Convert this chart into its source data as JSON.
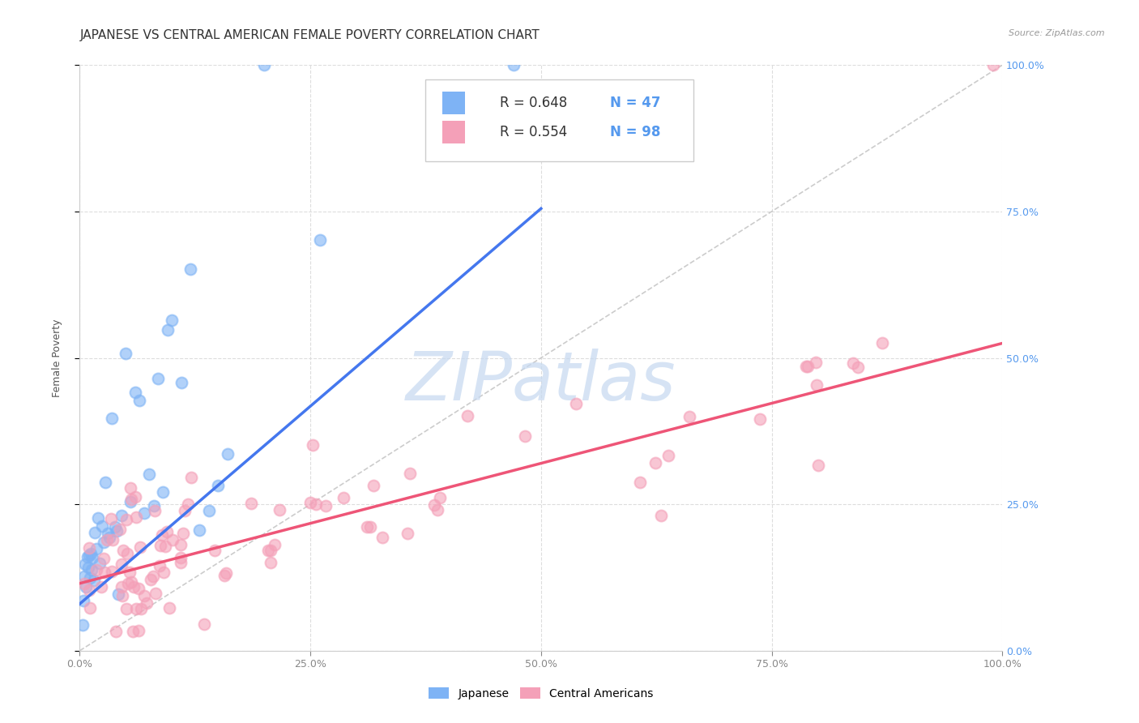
{
  "title": "JAPANESE VS CENTRAL AMERICAN FEMALE POVERTY CORRELATION CHART",
  "source": "Source: ZipAtlas.com",
  "ylabel": "Female Poverty",
  "xlim": [
    0,
    1.0
  ],
  "ylim": [
    0,
    1.0
  ],
  "xtick_vals": [
    0.0,
    0.25,
    0.5,
    0.75,
    1.0
  ],
  "ytick_vals": [
    0.0,
    0.25,
    0.5,
    0.75,
    1.0
  ],
  "xtick_labels": [
    "0.0%",
    "25.0%",
    "50.0%",
    "75.0%",
    "100.0%"
  ],
  "ytick_labels": [
    "0.0%",
    "25.0%",
    "50.0%",
    "75.0%",
    "100.0%"
  ],
  "japanese_color": "#7EB3F5",
  "central_american_color": "#F4A0B8",
  "diagonal_color": "#CCCCCC",
  "trend_japanese_color": "#4477EE",
  "trend_central_color": "#EE5577",
  "legend_R_japanese": "R = 0.648",
  "legend_N_japanese": "N = 47",
  "legend_R_central": "R = 0.554",
  "legend_N_central": "N = 98",
  "watermark_text": "ZIPatlas",
  "watermark_color": "#C5D8F0",
  "background_color": "#FFFFFF",
  "grid_color": "#DDDDDD",
  "tick_color_right": "#5599EE",
  "tick_color_x": "#888888",
  "title_fontsize": 11,
  "source_fontsize": 8,
  "axis_label_fontsize": 9,
  "tick_fontsize": 9,
  "jp_slope": 1.35,
  "jp_intercept": 0.08,
  "ca_slope": 0.41,
  "ca_intercept": 0.115,
  "jp_line_xmax": 0.5,
  "ca_line_xmax": 1.0
}
